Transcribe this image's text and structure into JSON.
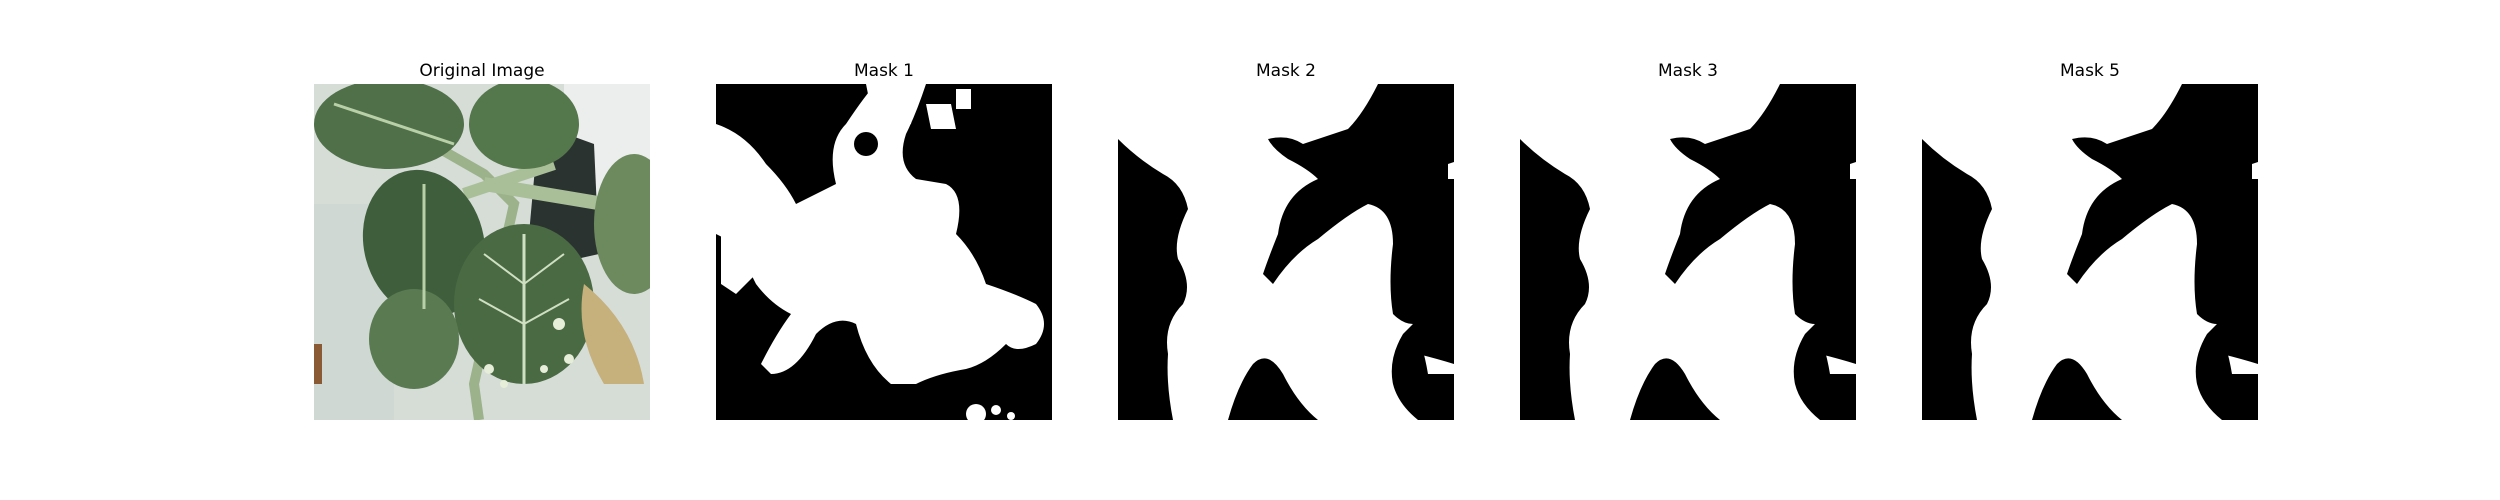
{
  "panels": [
    {
      "title": "Original Image",
      "kind": "photo",
      "subject": "plant-leaves"
    },
    {
      "title": "Mask 1",
      "kind": "mask",
      "mask_color": "#ffffff",
      "bg_color": "#000000"
    },
    {
      "title": "Mask 2",
      "kind": "mask",
      "mask_color": "#ffffff",
      "bg_color": "#000000"
    },
    {
      "title": "Mask 3",
      "kind": "mask",
      "mask_color": "#ffffff",
      "bg_color": "#000000"
    },
    {
      "title": "Mask 5",
      "kind": "mask",
      "mask_color": "#ffffff",
      "bg_color": "#000000"
    }
  ],
  "colors": {
    "photo_bg": "#d7dfd9",
    "leaf_dark": "#3f5f3c",
    "leaf_mid": "#5a7b52",
    "leaf_light": "#8fae7e",
    "pot": "#2b3330",
    "wall": "#e8ece9"
  }
}
